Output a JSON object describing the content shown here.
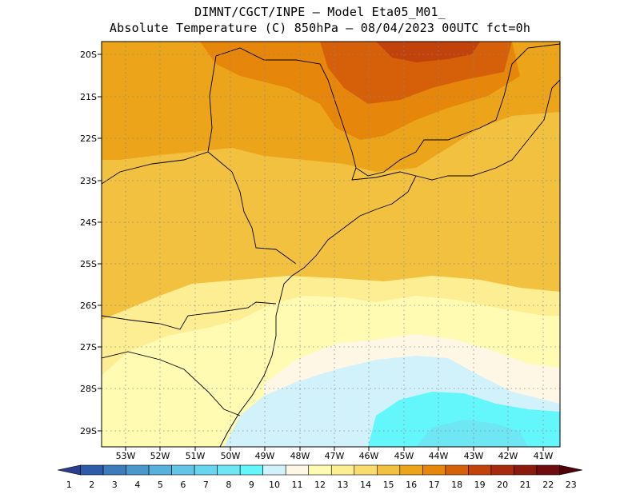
{
  "title": {
    "line1": "DIMNT/CGCT/INPE –  Model Eta05_M01_",
    "line2": "Absolute Temperature (C) 850hPa –  08/04/2023 00UTC fct=0h"
  },
  "map": {
    "lat_labels": [
      "20S",
      "21S",
      "22S",
      "23S",
      "24S",
      "25S",
      "26S",
      "27S",
      "28S",
      "29S"
    ],
    "lon_labels": [
      "53W",
      "52W",
      "51W",
      "50W",
      "49W",
      "48W",
      "47W",
      "46W",
      "45W",
      "44W",
      "43W",
      "42W",
      "41W"
    ],
    "gridlines": "dotted"
  },
  "colorbar": {
    "values": [
      "1",
      "2",
      "3",
      "4",
      "5",
      "6",
      "7",
      "8",
      "9",
      "10",
      "11",
      "12",
      "13",
      "14",
      "15",
      "16",
      "17",
      "18",
      "19",
      "20",
      "21",
      "22",
      "23"
    ],
    "colors": [
      "#2b3d8f",
      "#2e5ba8",
      "#3a7cbc",
      "#4a97cc",
      "#58b0dc",
      "#62c4e6",
      "#68d6ee",
      "#6ee6f4",
      "#63f6fb",
      "#d2f2fb",
      "#fff7e6",
      "#fffbb2",
      "#fdee94",
      "#f8dc6c",
      "#f2c140",
      "#eca51a",
      "#e6860a",
      "#d6600a",
      "#c2420c",
      "#a82a0c",
      "#8a1a0c",
      "#6e0c10",
      "#520008"
    ]
  }
}
